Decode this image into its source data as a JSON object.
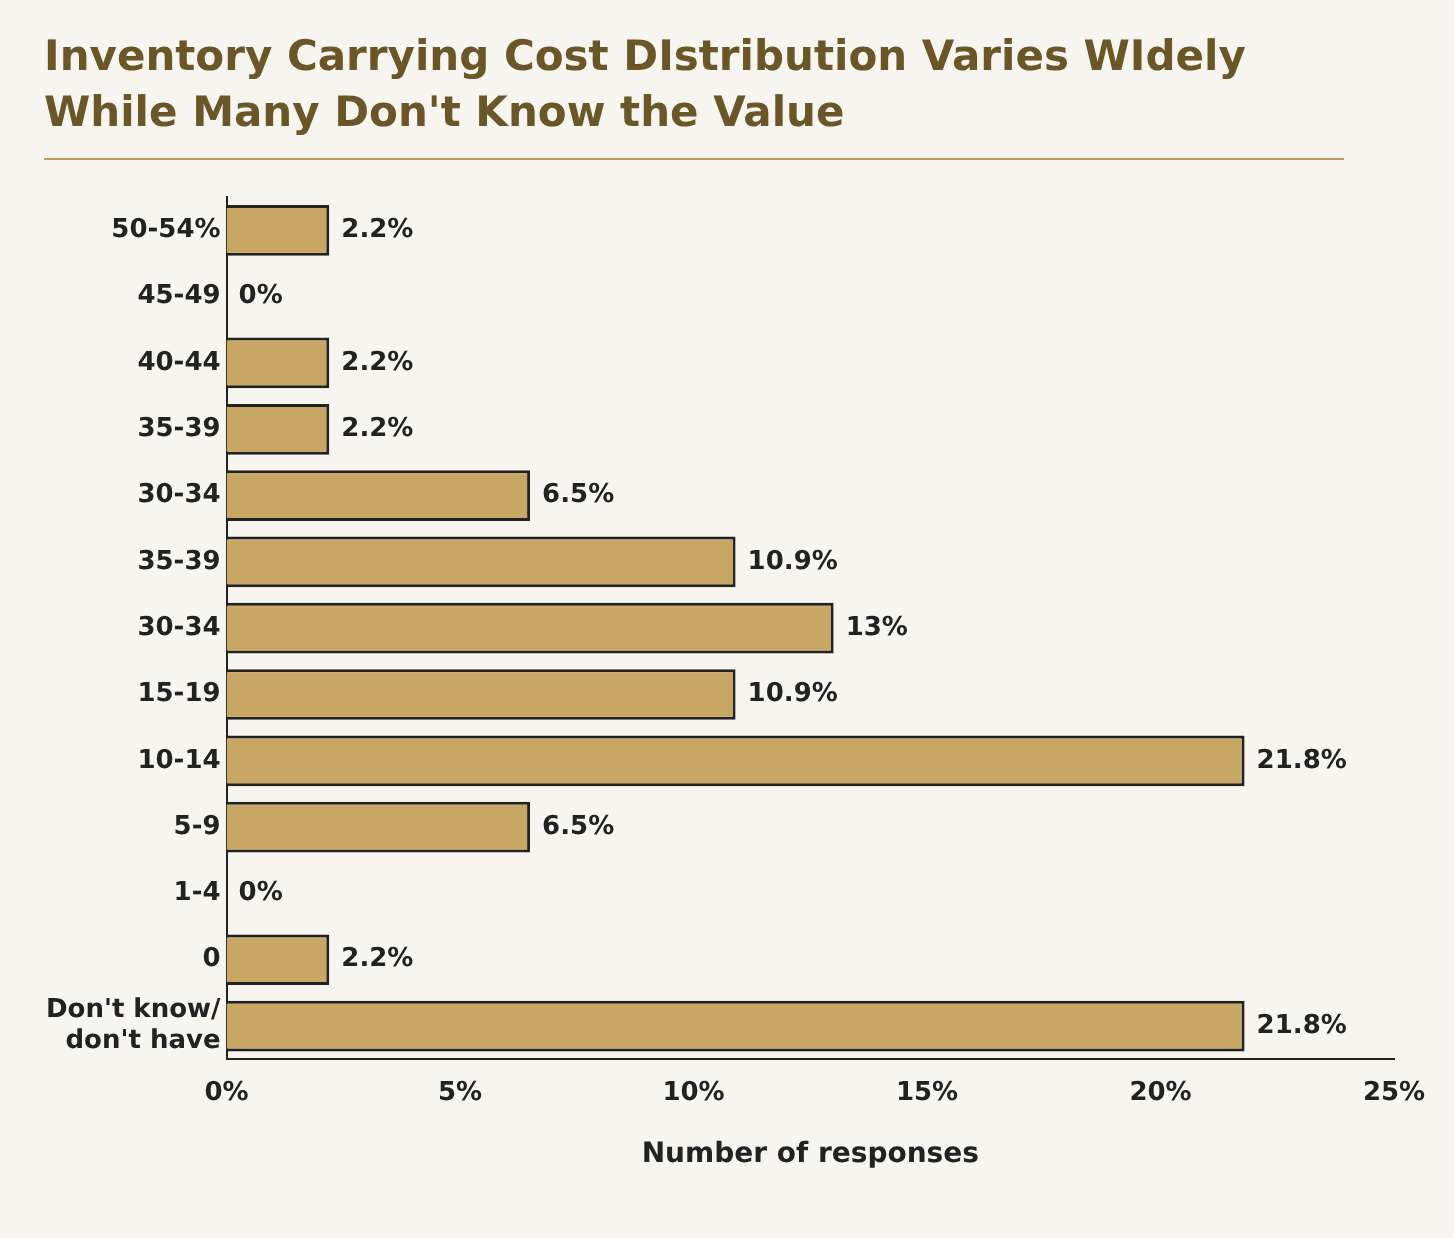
{
  "chart_data": {
    "type": "bar",
    "orientation": "horizontal",
    "title": "Inventory Carrying Cost DIstribution Varies WIdely While Many Don't Know the Value",
    "xlabel": "Number of responses",
    "categories": [
      "50-54%",
      "45-49",
      "40-44",
      "35-39",
      "30-34",
      "35-39",
      "30-34",
      "15-19",
      "10-14",
      "5-9",
      "1-4",
      "0",
      "Don't know/\ndon't have"
    ],
    "values": [
      2.2,
      0,
      2.2,
      2.2,
      6.5,
      10.9,
      13,
      10.9,
      21.8,
      6.5,
      0,
      2.2,
      21.8
    ],
    "value_labels": [
      "2.2%",
      "0%",
      "2.2%",
      "2.2%",
      "6.5%",
      "10.9%",
      "13%",
      "10.9%",
      "21.8%",
      "6.5%",
      "0%",
      "2.2%",
      "21.8%"
    ],
    "color": "#c8a765",
    "xlim": [
      0,
      25
    ],
    "xticks": [
      {
        "value": 0,
        "label": "0%"
      },
      {
        "value": 5,
        "label": "5%"
      },
      {
        "value": 10,
        "label": "10%"
      },
      {
        "value": 15,
        "label": "15%"
      },
      {
        "value": 20,
        "label": "20%"
      },
      {
        "value": 25,
        "label": "25%"
      }
    ],
    "grid": false,
    "legend": false
  }
}
